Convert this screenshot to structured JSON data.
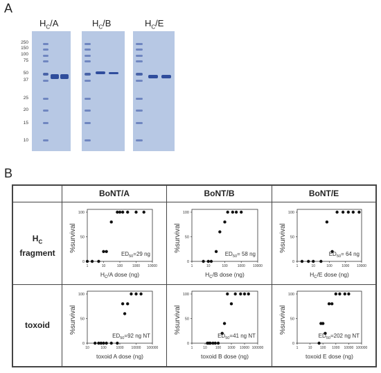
{
  "panel_a": {
    "letter": "A",
    "ladder_labels": [
      "250",
      "150",
      "100",
      "75",
      "50",
      "37",
      "25",
      "20",
      "15",
      "10"
    ],
    "gels": [
      {
        "title_main": "H",
        "title_sub": "C",
        "title_suffix": "/A"
      },
      {
        "title_main": "H",
        "title_sub": "C",
        "title_suffix": "/B"
      },
      {
        "title_main": "H",
        "title_sub": "C",
        "title_suffix": "/E"
      }
    ]
  },
  "panel_b": {
    "letter": "B",
    "columns": [
      "BoNT/A",
      "BoNT/B",
      "BoNT/E"
    ],
    "rows": [
      {
        "label_main": "H",
        "label_sub": "C",
        "label_line2": "fragment"
      },
      {
        "label_main": "toxoid",
        "label_sub": "",
        "label_line2": ""
      }
    ],
    "ylabel": "%survival"
  },
  "chart_data": [
    {
      "type": "scatter",
      "id": "hc-a",
      "xlabel": "H_C/A dose (ng)",
      "ylabel": "%survival",
      "xscale": "log",
      "xlim": [
        1,
        10000
      ],
      "ylim": [
        0,
        100
      ],
      "xticks": [
        "1",
        "10",
        "100",
        "1000",
        "10000"
      ],
      "yticks": [
        "0",
        "50",
        "100"
      ],
      "annotation": "ED50=29 ng",
      "x": [
        1,
        2,
        5,
        10,
        15,
        30,
        70,
        100,
        150,
        300,
        1000,
        3000
      ],
      "y": [
        0,
        0,
        0,
        20,
        20,
        80,
        100,
        100,
        100,
        100,
        100,
        100
      ]
    },
    {
      "type": "scatter",
      "id": "hc-b",
      "xlabel": "H_C/B dose (ng)",
      "ylabel": "%survival",
      "xscale": "log",
      "xlim": [
        1,
        10000
      ],
      "ylim": [
        0,
        100
      ],
      "xticks": [
        "1",
        "10",
        "100",
        "1000",
        "10000"
      ],
      "yticks": [
        "0",
        "50",
        "100"
      ],
      "annotation": "ED50= 58 ng",
      "x": [
        5,
        10,
        15,
        30,
        50,
        100,
        150,
        300,
        500,
        1000
      ],
      "y": [
        0,
        0,
        0,
        20,
        60,
        80,
        100,
        100,
        100,
        100
      ]
    },
    {
      "type": "scatter",
      "id": "hc-e",
      "xlabel": "H_C/E dose (ng)",
      "ylabel": "%survival",
      "xscale": "log",
      "xlim": [
        1,
        10000
      ],
      "ylim": [
        0,
        100
      ],
      "xticks": [
        "1",
        "10",
        "100",
        "1000",
        "10000"
      ],
      "yticks": [
        "0",
        "50",
        "100"
      ],
      "annotation": "ED50= 64 ng",
      "x": [
        2,
        5,
        10,
        30,
        70,
        150,
        300,
        700,
        1500,
        3000,
        7000
      ],
      "y": [
        0,
        0,
        0,
        0,
        80,
        20,
        100,
        100,
        100,
        100,
        100
      ]
    },
    {
      "type": "scatter",
      "id": "toxoid-a",
      "xlabel": "toxoid A dose (ng)",
      "ylabel": "%survival",
      "xscale": "log",
      "xlim": [
        10,
        100000
      ],
      "ylim": [
        0,
        100
      ],
      "xticks": [
        "10",
        "100",
        "1000",
        "10000",
        "100000"
      ],
      "yticks": [
        "0",
        "50",
        "100"
      ],
      "annotation": "ED50=92 ng NT",
      "x": [
        30,
        50,
        70,
        100,
        150,
        300,
        700,
        1500,
        2000,
        3000,
        5000,
        10000,
        20000
      ],
      "y": [
        0,
        0,
        0,
        0,
        0,
        0,
        0,
        80,
        60,
        80,
        100,
        100,
        100
      ]
    },
    {
      "type": "scatter",
      "id": "toxoid-b",
      "xlabel": "toxoid B dose (ng)",
      "ylabel": "%survival",
      "xscale": "log",
      "xlim": [
        1,
        100000
      ],
      "ylim": [
        0,
        100
      ],
      "xticks": [
        "1",
        "10",
        "100",
        "1000",
        "10000",
        "100000"
      ],
      "yticks": [
        "0",
        "50",
        "100"
      ],
      "annotation": "ED50=41 ng NT",
      "x": [
        15,
        20,
        25,
        40,
        60,
        100,
        200,
        300,
        500,
        1000,
        2000,
        5000,
        10000,
        20000
      ],
      "y": [
        0,
        0,
        0,
        0,
        0,
        0,
        20,
        40,
        100,
        80,
        100,
        100,
        100,
        100
      ]
    },
    {
      "type": "scatter",
      "id": "toxoid-e",
      "xlabel": "toxoid E dose (ng)",
      "ylabel": "%survival",
      "xscale": "log",
      "xlim": [
        1,
        100000
      ],
      "ylim": [
        0,
        100
      ],
      "xticks": [
        "1",
        "10",
        "100",
        "1000",
        "10000",
        "100000"
      ],
      "yticks": [
        "0",
        "50",
        "100"
      ],
      "annotation": "ED50=202 ng NT",
      "x": [
        50,
        70,
        100,
        150,
        300,
        500,
        1000,
        2000,
        5000,
        10000
      ],
      "y": [
        0,
        40,
        40,
        20,
        80,
        80,
        100,
        100,
        100,
        100
      ]
    }
  ]
}
